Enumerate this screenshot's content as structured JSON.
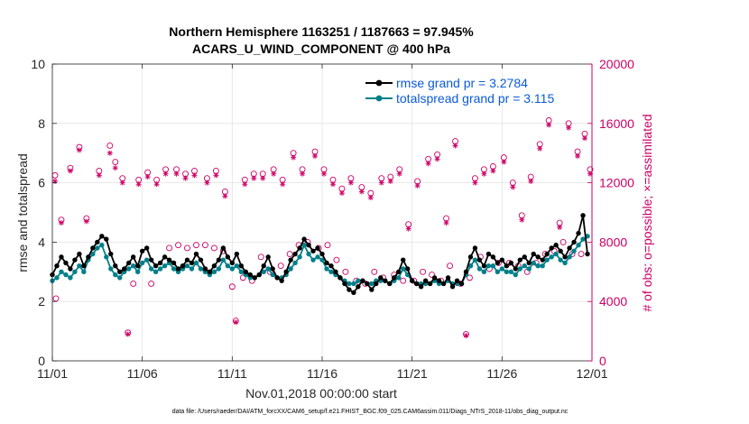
{
  "chart_data": {
    "type": "line",
    "title": "Northern Hemisphere 1163251 / 1187663 = 97.945%",
    "subtitle": "ACARS_U_WIND_COMPONENT @ 400 hPa",
    "xlabel": "Nov.01,2018 00:00:00 start",
    "ylabel": "rmse and totalspread",
    "y2label": "# of obs: o=possible; ×=assimilated",
    "footer": "data file: /Users/raeder/DAI/ATM_forcXX/CAM6_setup/f.e21.FHIST_BGC.f09_025.CAM6assim.011/Diags_NTrS_2018-11/obs_diag_output.nc",
    "xlim": [
      0,
      30
    ],
    "xticks": [
      0,
      5,
      10,
      15,
      20,
      25,
      30
    ],
    "xticklabels": [
      "11/01",
      "11/06",
      "11/11",
      "11/16",
      "11/21",
      "11/26",
      "12/01"
    ],
    "ylim": [
      0,
      10
    ],
    "yticks": [
      0,
      2,
      4,
      6,
      8,
      10
    ],
    "yticklabels": [
      "0",
      "2",
      "4",
      "6",
      "8",
      "10"
    ],
    "y2lim": [
      0,
      20000
    ],
    "y2ticks": [
      0,
      4000,
      8000,
      12000,
      16000,
      20000
    ],
    "y2ticklabels": [
      "0",
      "4000",
      "8000",
      "12000",
      "16000",
      "20000"
    ],
    "grid": true,
    "legend_position": "top-right",
    "colors": {
      "rmse": "#000000",
      "spread": "#00808a",
      "obs": "#cc0066",
      "legend_text": "#0a5bd8"
    },
    "series": [
      {
        "name": "rmse",
        "legend": "rmse grand pr = 3.2784",
        "axis": "left",
        "x": [
          0.0,
          0.25,
          0.5,
          0.75,
          1.0,
          1.25,
          1.5,
          1.75,
          2.0,
          2.25,
          2.5,
          2.75,
          3.0,
          3.25,
          3.5,
          3.75,
          4.0,
          4.25,
          4.5,
          4.75,
          5.0,
          5.25,
          5.5,
          5.75,
          6.0,
          6.25,
          6.5,
          6.75,
          7.0,
          7.25,
          7.5,
          7.75,
          8.0,
          8.25,
          8.5,
          8.75,
          9.0,
          9.25,
          9.5,
          9.75,
          10.0,
          10.25,
          10.5,
          10.75,
          11.0,
          11.25,
          11.5,
          11.75,
          12.0,
          12.25,
          12.5,
          12.75,
          13.0,
          13.25,
          13.5,
          13.75,
          14.0,
          14.25,
          14.5,
          14.75,
          15.0,
          15.25,
          15.5,
          15.75,
          16.0,
          16.25,
          16.5,
          16.75,
          17.0,
          17.25,
          17.5,
          17.75,
          18.0,
          18.25,
          18.5,
          18.75,
          19.0,
          19.25,
          19.5,
          19.75,
          20.0,
          20.25,
          20.5,
          20.75,
          21.0,
          21.25,
          21.5,
          21.75,
          22.0,
          22.25,
          22.5,
          22.75,
          23.0,
          23.25,
          23.5,
          23.75,
          24.0,
          24.25,
          24.5,
          24.75,
          25.0,
          25.25,
          25.5,
          25.75,
          26.0,
          26.25,
          26.5,
          26.75,
          27.0,
          27.25,
          27.5,
          27.75,
          28.0,
          28.25,
          28.5,
          28.75,
          29.0,
          29.25,
          29.5,
          29.75
        ],
        "values": [
          2.9,
          3.2,
          3.5,
          3.3,
          3.1,
          3.4,
          3.6,
          3.2,
          3.5,
          3.8,
          4.0,
          4.2,
          4.1,
          3.6,
          3.2,
          3.0,
          3.1,
          3.3,
          3.5,
          3.2,
          3.7,
          3.8,
          3.4,
          3.2,
          3.3,
          3.5,
          3.4,
          3.3,
          3.1,
          3.2,
          3.4,
          3.3,
          3.6,
          3.4,
          3.1,
          3.0,
          3.2,
          3.4,
          3.8,
          3.5,
          3.3,
          3.6,
          3.2,
          3.0,
          2.9,
          2.8,
          2.9,
          3.2,
          3.5,
          3.1,
          2.8,
          2.7,
          3.0,
          3.4,
          3.6,
          3.8,
          4.1,
          3.9,
          3.7,
          3.8,
          3.6,
          3.3,
          3.2,
          3.0,
          2.8,
          2.6,
          2.4,
          2.3,
          2.5,
          2.7,
          2.6,
          2.4,
          2.6,
          2.8,
          2.7,
          2.6,
          2.8,
          3.0,
          3.4,
          3.1,
          2.7,
          2.6,
          2.5,
          2.7,
          2.6,
          2.8,
          2.7,
          2.6,
          2.8,
          2.5,
          2.7,
          2.6,
          3.0,
          3.5,
          3.8,
          3.4,
          3.2,
          3.6,
          3.5,
          3.3,
          3.4,
          3.2,
          3.3,
          3.1,
          3.4,
          3.5,
          3.3,
          3.6,
          3.5,
          3.4,
          3.6,
          3.8,
          3.9,
          3.7,
          3.5,
          3.8,
          4.0,
          4.3,
          4.9,
          3.6
        ],
        "visible_markers": true
      },
      {
        "name": "totalspread",
        "legend": "totalspread grand pr = 3.115",
        "axis": "left",
        "x": [
          0.0,
          0.25,
          0.5,
          0.75,
          1.0,
          1.25,
          1.5,
          1.75,
          2.0,
          2.25,
          2.5,
          2.75,
          3.0,
          3.25,
          3.5,
          3.75,
          4.0,
          4.25,
          4.5,
          4.75,
          5.0,
          5.25,
          5.5,
          5.75,
          6.0,
          6.25,
          6.5,
          6.75,
          7.0,
          7.25,
          7.5,
          7.75,
          8.0,
          8.25,
          8.5,
          8.75,
          9.0,
          9.25,
          9.5,
          9.75,
          10.0,
          10.25,
          10.5,
          10.75,
          11.0,
          11.25,
          11.5,
          11.75,
          12.0,
          12.25,
          12.5,
          12.75,
          13.0,
          13.25,
          13.5,
          13.75,
          14.0,
          14.25,
          14.5,
          14.75,
          15.0,
          15.25,
          15.5,
          15.75,
          16.0,
          16.25,
          16.5,
          16.75,
          17.0,
          17.25,
          17.5,
          17.75,
          18.0,
          18.25,
          18.5,
          18.75,
          19.0,
          19.25,
          19.5,
          19.75,
          20.0,
          20.25,
          20.5,
          20.75,
          21.0,
          21.25,
          21.5,
          21.75,
          22.0,
          22.25,
          22.5,
          22.75,
          23.0,
          23.25,
          23.5,
          23.75,
          24.0,
          24.25,
          24.5,
          24.75,
          25.0,
          25.25,
          25.5,
          25.75,
          26.0,
          26.25,
          26.5,
          26.75,
          27.0,
          27.25,
          27.5,
          27.75,
          28.0,
          28.25,
          28.5,
          28.75,
          29.0,
          29.25,
          29.5,
          29.75
        ],
        "values": [
          2.7,
          2.8,
          3.0,
          2.9,
          2.8,
          3.0,
          3.2,
          3.0,
          3.4,
          3.6,
          3.8,
          3.9,
          3.5,
          3.1,
          2.9,
          2.8,
          3.0,
          3.1,
          3.2,
          3.0,
          3.3,
          3.4,
          3.1,
          3.0,
          3.1,
          3.2,
          3.3,
          3.1,
          3.0,
          3.1,
          3.2,
          3.1,
          3.3,
          3.1,
          3.0,
          2.9,
          3.0,
          3.1,
          3.4,
          3.2,
          3.1,
          3.2,
          3.0,
          2.9,
          2.8,
          2.8,
          2.9,
          3.0,
          3.1,
          2.9,
          2.8,
          2.8,
          2.9,
          3.1,
          3.3,
          3.5,
          3.9,
          3.6,
          3.4,
          3.5,
          3.4,
          3.1,
          3.0,
          2.9,
          2.8,
          2.7,
          2.6,
          2.6,
          2.7,
          2.7,
          2.6,
          2.6,
          2.7,
          2.7,
          2.7,
          2.6,
          2.7,
          2.8,
          3.1,
          2.9,
          2.7,
          2.6,
          2.6,
          2.6,
          2.6,
          2.7,
          2.6,
          2.6,
          2.7,
          2.6,
          2.6,
          2.6,
          2.9,
          3.2,
          3.4,
          3.1,
          3.0,
          3.2,
          3.2,
          3.0,
          3.1,
          3.0,
          3.0,
          2.9,
          3.1,
          3.2,
          3.1,
          3.3,
          3.2,
          3.2,
          3.4,
          3.5,
          3.6,
          3.4,
          3.3,
          3.5,
          3.7,
          3.9,
          4.1,
          4.2
        ],
        "visible_markers": true
      },
      {
        "name": "obs_possible",
        "axis": "right",
        "marker": "o",
        "x": [
          0.15,
          0.5,
          1.0,
          1.5,
          1.9,
          2.6,
          3.2,
          3.5,
          3.9,
          4.2,
          4.8,
          5.3,
          5.8,
          6.3,
          6.9,
          7.4,
          7.9,
          8.6,
          9.1,
          9.6,
          10.2,
          10.7,
          11.2,
          11.7,
          12.3,
          12.8,
          13.4,
          13.9,
          14.6,
          15.1,
          15.6,
          16.1,
          16.6,
          17.2,
          17.7,
          18.3,
          18.8,
          19.3,
          19.8,
          20.3,
          20.9,
          21.4,
          21.9,
          22.4,
          23.0,
          23.5,
          24.0,
          24.5,
          25.1,
          25.6,
          26.1,
          26.6,
          27.1,
          27.6,
          28.2,
          28.7,
          29.2,
          29.6,
          29.9
        ],
        "values": [
          12500,
          9500,
          13000,
          14400,
          9600,
          12800,
          14500,
          13400,
          12300,
          1900,
          12200,
          12700,
          12200,
          12900,
          12900,
          12600,
          12800,
          12300,
          12800,
          11400,
          2700,
          12200,
          12600,
          12600,
          12900,
          12200,
          14000,
          12900,
          14100,
          12900,
          12200,
          11600,
          12300,
          11700,
          11300,
          12300,
          12400,
          12900,
          9200,
          12100,
          13600,
          13900,
          9600,
          14800,
          1800,
          12300,
          12900,
          13100,
          13700,
          12000,
          9800,
          12400,
          14600,
          16200,
          9300,
          16000,
          14100,
          15300,
          12900
        ]
      },
      {
        "name": "obs_assimilated",
        "axis": "right",
        "marker": "x",
        "x": [
          0.15,
          0.5,
          1.0,
          1.5,
          1.9,
          2.6,
          3.2,
          3.5,
          3.9,
          4.2,
          4.8,
          5.3,
          5.8,
          6.3,
          6.9,
          7.4,
          7.9,
          8.6,
          9.1,
          9.6,
          10.2,
          10.7,
          11.2,
          11.7,
          12.3,
          12.8,
          13.4,
          13.9,
          14.6,
          15.1,
          15.6,
          16.1,
          16.6,
          17.2,
          17.7,
          18.3,
          18.8,
          19.3,
          19.8,
          20.3,
          20.9,
          21.4,
          21.9,
          22.4,
          23.0,
          23.5,
          24.0,
          24.5,
          25.1,
          25.6,
          26.1,
          26.6,
          27.1,
          27.6,
          28.2,
          28.7,
          29.2,
          29.6,
          29.9
        ],
        "values": [
          12100,
          9300,
          12800,
          14200,
          9400,
          12500,
          14000,
          13000,
          12000,
          1800,
          11900,
          12400,
          11900,
          12600,
          12600,
          12300,
          12500,
          12000,
          12500,
          11100,
          2600,
          11900,
          12300,
          12300,
          12600,
          11900,
          13700,
          12600,
          13800,
          12600,
          11900,
          11300,
          12000,
          11400,
          11000,
          12000,
          12100,
          12600,
          8900,
          11800,
          13300,
          13600,
          9300,
          14500,
          1700,
          12000,
          12600,
          12800,
          13400,
          11700,
          9500,
          12100,
          14300,
          15900,
          9000,
          15700,
          13800,
          15000,
          12600
        ]
      },
      {
        "name": "obs_possible_low",
        "axis": "left",
        "marker": "o",
        "x": [
          0.2,
          4.5,
          5.5,
          6.5,
          7.0,
          7.5,
          8.0,
          8.5,
          9.0,
          9.5,
          10.0,
          10.6,
          11.1,
          11.6,
          12.1,
          12.7,
          13.2,
          13.7,
          14.2,
          14.8,
          15.3,
          15.8,
          16.3,
          16.9,
          17.4,
          17.9,
          18.4,
          19.0,
          19.5,
          20.1,
          20.6,
          21.1,
          21.6,
          22.1,
          22.7,
          23.2,
          23.8,
          24.3,
          24.8,
          25.4,
          25.9,
          26.4,
          26.9,
          27.4,
          27.9,
          28.4,
          28.9,
          29.4
        ],
        "values": [
          2.1,
          2.6,
          2.6,
          3.8,
          3.9,
          3.8,
          3.9,
          3.9,
          3.8,
          3.7,
          2.5,
          2.8,
          2.7,
          3.5,
          3.0,
          3.2,
          3.6,
          3.9,
          4.0,
          3.8,
          3.9,
          3.4,
          3.0,
          2.7,
          2.6,
          3.0,
          2.8,
          2.9,
          2.7,
          2.7,
          3.0,
          2.9,
          2.7,
          3.2,
          2.6,
          2.8,
          3.5,
          3.1,
          3.3,
          3.3,
          3.2,
          3.0,
          3.3,
          3.6,
          3.7,
          4.0,
          3.6,
          3.6
        ]
      }
    ],
    "legend": [
      "rmse grand pr = 3.2784",
      "totalspread grand pr = 3.115"
    ]
  }
}
